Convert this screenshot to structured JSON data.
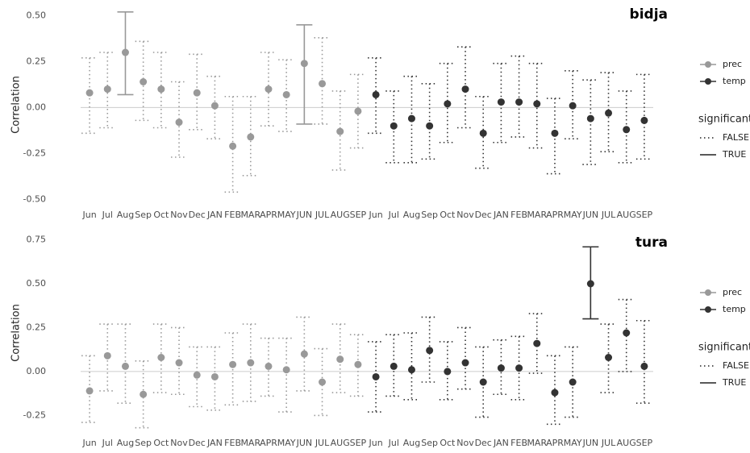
{
  "chart_data": [
    {
      "type": "errorbar",
      "title": "bidja",
      "y_label": "Correlation",
      "categories": [
        "Jun",
        "Jul",
        "Aug",
        "Sep",
        "Oct",
        "Nov",
        "Dec",
        "JAN",
        "FEB",
        "MAR",
        "APR",
        "MAY",
        "JUN",
        "JUL",
        "AUG",
        "SEP",
        "Jun",
        "Jul",
        "Aug",
        "Sep",
        "Oct",
        "Nov",
        "Dec",
        "JAN",
        "FEB",
        "MAR",
        "APR",
        "MAY",
        "JUN",
        "JUL",
        "AUG",
        "SEP"
      ],
      "ylim": [
        -0.52,
        0.55
      ],
      "yticks": [
        {
          "value": -0.5,
          "label": "-0.50"
        },
        {
          "value": -0.25,
          "label": "-0.25"
        },
        {
          "value": 0,
          "label": "0.00"
        },
        {
          "value": 0.25,
          "label": "0.25"
        },
        {
          "value": 0.5,
          "label": "0.50"
        }
      ],
      "reference_line": 0,
      "series": [
        {
          "name": "prec",
          "color": "#999999",
          "values": [
            0.08,
            0.1,
            0.3,
            0.14,
            0.1,
            -0.08,
            0.08,
            0.01,
            -0.21,
            -0.16,
            0.1,
            0.07,
            0.24,
            0.13,
            -0.13,
            -0.02,
            null,
            null,
            null,
            null,
            null,
            null,
            null,
            null,
            null,
            null,
            null,
            null,
            null,
            null,
            null,
            null
          ],
          "upper": [
            0.27,
            0.3,
            0.52,
            0.36,
            0.3,
            0.14,
            0.29,
            0.17,
            0.06,
            0.06,
            0.3,
            0.26,
            0.45,
            0.38,
            0.09,
            0.18,
            null,
            null,
            null,
            null,
            null,
            null,
            null,
            null,
            null,
            null,
            null,
            null,
            null,
            null,
            null,
            null
          ],
          "lower": [
            -0.14,
            -0.11,
            0.07,
            -0.07,
            -0.11,
            -0.27,
            -0.12,
            -0.17,
            -0.46,
            -0.37,
            -0.1,
            -0.13,
            -0.09,
            -0.09,
            -0.34,
            -0.22,
            null,
            null,
            null,
            null,
            null,
            null,
            null,
            null,
            null,
            null,
            null,
            null,
            null,
            null,
            null,
            null
          ],
          "significant": [
            false,
            false,
            true,
            false,
            false,
            false,
            false,
            false,
            false,
            false,
            false,
            false,
            true,
            false,
            false,
            false,
            null,
            null,
            null,
            null,
            null,
            null,
            null,
            null,
            null,
            null,
            null,
            null,
            null,
            null,
            null,
            null
          ]
        },
        {
          "name": "temp",
          "color": "#333333",
          "values": [
            null,
            null,
            null,
            null,
            null,
            null,
            null,
            null,
            null,
            null,
            null,
            null,
            null,
            null,
            null,
            null,
            0.07,
            -0.1,
            -0.06,
            -0.1,
            0.02,
            0.1,
            -0.14,
            0.03,
            0.03,
            0.02,
            -0.14,
            0.01,
            -0.06,
            -0.03,
            -0.12,
            -0.07
          ],
          "upper": [
            null,
            null,
            null,
            null,
            null,
            null,
            null,
            null,
            null,
            null,
            null,
            null,
            null,
            null,
            null,
            null,
            0.27,
            0.09,
            0.17,
            0.13,
            0.24,
            0.33,
            0.06,
            0.24,
            0.28,
            0.24,
            0.05,
            0.2,
            0.15,
            0.19,
            0.09,
            0.18
          ],
          "lower": [
            null,
            null,
            null,
            null,
            null,
            null,
            null,
            null,
            null,
            null,
            null,
            null,
            null,
            null,
            null,
            null,
            -0.14,
            -0.3,
            -0.3,
            -0.28,
            -0.19,
            -0.11,
            -0.33,
            -0.19,
            -0.16,
            -0.22,
            -0.36,
            -0.17,
            -0.31,
            -0.24,
            -0.3,
            -0.28
          ],
          "significant": [
            null,
            null,
            null,
            null,
            null,
            null,
            null,
            null,
            null,
            null,
            null,
            null,
            null,
            null,
            null,
            null,
            false,
            false,
            false,
            false,
            false,
            false,
            false,
            false,
            false,
            false,
            false,
            false,
            false,
            false,
            false,
            false
          ]
        }
      ],
      "significance_legend": {
        "title": "significant",
        "labels": [
          "FALSE",
          "TRUE"
        ]
      }
    },
    {
      "type": "errorbar",
      "title": "tura",
      "y_label": "Correlation",
      "categories": [
        "Jun",
        "Jul",
        "Aug",
        "Sep",
        "Oct",
        "Nov",
        "Dec",
        "JAN",
        "FEB",
        "MAR",
        "APR",
        "MAY",
        "JUN",
        "JUL",
        "AUG",
        "SEP",
        "Jun",
        "Jul",
        "Aug",
        "Sep",
        "Oct",
        "Nov",
        "Dec",
        "JAN",
        "FEB",
        "MAR",
        "APR",
        "MAY",
        "JUN",
        "JUL",
        "AUG",
        "SEP"
      ],
      "ylim": [
        -0.34,
        0.78
      ],
      "yticks": [
        {
          "value": -0.25,
          "label": "-0.25"
        },
        {
          "value": 0,
          "label": "0.00"
        },
        {
          "value": 0.25,
          "label": "0.25"
        },
        {
          "value": 0.5,
          "label": "0.50"
        },
        {
          "value": 0.75,
          "label": "0.75"
        }
      ],
      "reference_line": 0,
      "series": [
        {
          "name": "prec",
          "color": "#999999",
          "values": [
            -0.11,
            0.09,
            0.03,
            -0.13,
            0.08,
            0.05,
            -0.02,
            -0.03,
            0.04,
            0.05,
            0.03,
            0.01,
            0.1,
            -0.06,
            0.07,
            0.04,
            null,
            null,
            null,
            null,
            null,
            null,
            null,
            null,
            null,
            null,
            null,
            null,
            null,
            null,
            null,
            null
          ],
          "upper": [
            0.09,
            0.27,
            0.27,
            0.06,
            0.27,
            0.25,
            0.14,
            0.14,
            0.22,
            0.27,
            0.19,
            0.19,
            0.31,
            0.13,
            0.27,
            0.21,
            null,
            null,
            null,
            null,
            null,
            null,
            null,
            null,
            null,
            null,
            null,
            null,
            null,
            null,
            null,
            null
          ],
          "lower": [
            -0.29,
            -0.11,
            -0.18,
            -0.32,
            -0.12,
            -0.13,
            -0.2,
            -0.22,
            -0.19,
            -0.17,
            -0.14,
            -0.23,
            -0.11,
            -0.25,
            -0.12,
            -0.14,
            null,
            null,
            null,
            null,
            null,
            null,
            null,
            null,
            null,
            null,
            null,
            null,
            null,
            null,
            null,
            null
          ],
          "significant": [
            false,
            false,
            false,
            false,
            false,
            false,
            false,
            false,
            false,
            false,
            false,
            false,
            false,
            false,
            false,
            false,
            null,
            null,
            null,
            null,
            null,
            null,
            null,
            null,
            null,
            null,
            null,
            null,
            null,
            null,
            null,
            null
          ]
        },
        {
          "name": "temp",
          "color": "#333333",
          "values": [
            null,
            null,
            null,
            null,
            null,
            null,
            null,
            null,
            null,
            null,
            null,
            null,
            null,
            null,
            null,
            null,
            -0.03,
            0.03,
            0.01,
            0.12,
            0,
            0.05,
            -0.06,
            0.02,
            0.02,
            0.16,
            -0.12,
            -0.06,
            0.5,
            0.08,
            0.22,
            0.03
          ],
          "upper": [
            null,
            null,
            null,
            null,
            null,
            null,
            null,
            null,
            null,
            null,
            null,
            null,
            null,
            null,
            null,
            null,
            0.17,
            0.21,
            0.22,
            0.31,
            0.17,
            0.25,
            0.14,
            0.18,
            0.2,
            0.33,
            0.09,
            0.14,
            0.71,
            0.27,
            0.41,
            0.29
          ],
          "lower": [
            null,
            null,
            null,
            null,
            null,
            null,
            null,
            null,
            null,
            null,
            null,
            null,
            null,
            null,
            null,
            null,
            -0.23,
            -0.14,
            -0.16,
            -0.06,
            -0.16,
            -0.1,
            -0.26,
            -0.13,
            -0.16,
            -0.01,
            -0.3,
            -0.26,
            0.3,
            -0.12,
            0,
            -0.18
          ],
          "significant": [
            null,
            null,
            null,
            null,
            null,
            null,
            null,
            null,
            null,
            null,
            null,
            null,
            null,
            null,
            null,
            null,
            false,
            false,
            false,
            false,
            false,
            false,
            false,
            false,
            false,
            false,
            false,
            false,
            true,
            false,
            false,
            false
          ]
        }
      ],
      "significance_legend": {
        "title": "significant",
        "labels": [
          "FALSE",
          "TRUE"
        ]
      }
    }
  ]
}
